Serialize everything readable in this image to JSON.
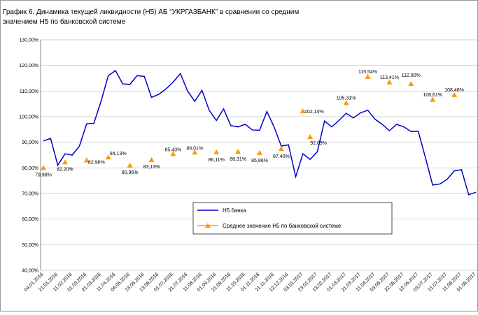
{
  "chart_data": {
    "type": "line",
    "title": [
      "График 6.  Динамика текущей ликвидности (Н5) АБ “УКРГАЗБАНК” в сравнении со средним",
      "значением Н5 по банковской системе"
    ],
    "categories": [
      "04.01.2016",
      null,
      "21.01.2016",
      null,
      "11.02.2016",
      null,
      "01.03.2016",
      null,
      "21.03.2016",
      null,
      "11.04.2016",
      null,
      "04.05.2016",
      null,
      "23.05.2016",
      null,
      "13.06.2016",
      null,
      "01.07.2016",
      null,
      "21.07.2016",
      null,
      "11.08.2016",
      null,
      "01.09.2016",
      null,
      "21.09.2016",
      null,
      "11.10.2016",
      null,
      "01.11.2016",
      null,
      "21.11.2016",
      null,
      "12.12.2016",
      null,
      "03.01.2017",
      null,
      "23.01.2017",
      null,
      "13.02.2017",
      null,
      "01.03.2017",
      null,
      "21.03.2017",
      null,
      "11.04.2017",
      null,
      "03.05.2017",
      null,
      "22.05.2017",
      null,
      "12.06.2017",
      null,
      "03.07.2017",
      null,
      "21.07.2017",
      null,
      "11.08.2017",
      null,
      "01.09.2017"
    ],
    "series": [
      {
        "name": "Н5 банка",
        "color": "#0000cc",
        "values": [
          90.5,
          91.5,
          81,
          85.5,
          85,
          88.5,
          97.2,
          97.4,
          106,
          116,
          118,
          112.8,
          112.6,
          116,
          115.7,
          107.5,
          108.7,
          110.8,
          113.5,
          116.8,
          110,
          106,
          110.3,
          102.5,
          98.5,
          103,
          96.5,
          96,
          97,
          94.8,
          94.7,
          102,
          96,
          88.5,
          89,
          76.5,
          85.5,
          83.3,
          86.3,
          98.3,
          96,
          98.5,
          101.3,
          99.5,
          101.5,
          102.5,
          99,
          97,
          94.5,
          97,
          96,
          94.2,
          94.3,
          84,
          73.3,
          73.7,
          75.5,
          78.8,
          79.3,
          69.5,
          70.5
        ]
      },
      {
        "name": "Среднее значение Н5 по банковской системе",
        "color": "#ff9900",
        "values": [
          79.98,
          null,
          null,
          82.2,
          null,
          null,
          82.96,
          null,
          null,
          84.13,
          null,
          null,
          80.96,
          null,
          null,
          83.13,
          null,
          null,
          85.43,
          null,
          null,
          86.01,
          null,
          null,
          86.11,
          null,
          null,
          86.31,
          null,
          null,
          85.86,
          null,
          null,
          87.4,
          null,
          null,
          102.14,
          92.09,
          null,
          null,
          null,
          null,
          105.31,
          null,
          null,
          115.54,
          null,
          null,
          113.41,
          null,
          null,
          112.8,
          null,
          null,
          106.61,
          null,
          null,
          108.48,
          null,
          null,
          null
        ],
        "value_labels": [
          "79,98%",
          null,
          null,
          "82,20%",
          null,
          null,
          "82,96%",
          null,
          null,
          "84,13%",
          null,
          null,
          "80,96%",
          null,
          null,
          "83,13%",
          null,
          null,
          "85,43%",
          null,
          null,
          "86,01%",
          null,
          null,
          "86,11%",
          null,
          null,
          "86,31%",
          null,
          null,
          "85,86%",
          null,
          null,
          "87,40%",
          null,
          null,
          "102,14%",
          "92,09%",
          null,
          null,
          null,
          null,
          "105,31%",
          null,
          null,
          "115,54%",
          null,
          null,
          "113,41%",
          null,
          null,
          "112,80%",
          null,
          null,
          "106,61%",
          null,
          null,
          "108,48%",
          null,
          null,
          null
        ]
      }
    ],
    "ylim": [
      40,
      130
    ],
    "yticks": [
      {
        "value": 40,
        "label": "40,00%"
      },
      {
        "value": 50,
        "label": "50,00%"
      },
      {
        "value": 60,
        "label": "60,00%"
      },
      {
        "value": 70,
        "label": "70,00%"
      },
      {
        "value": 80,
        "label": "80,00%"
      },
      {
        "value": 90,
        "label": "90,00%"
      },
      {
        "value": 100,
        "label": "100,00%"
      },
      {
        "value": 110,
        "label": "110,00%"
      },
      {
        "value": 120,
        "label": "120,00%"
      },
      {
        "value": 130,
        "label": "130,00%"
      }
    ],
    "grid": true
  }
}
